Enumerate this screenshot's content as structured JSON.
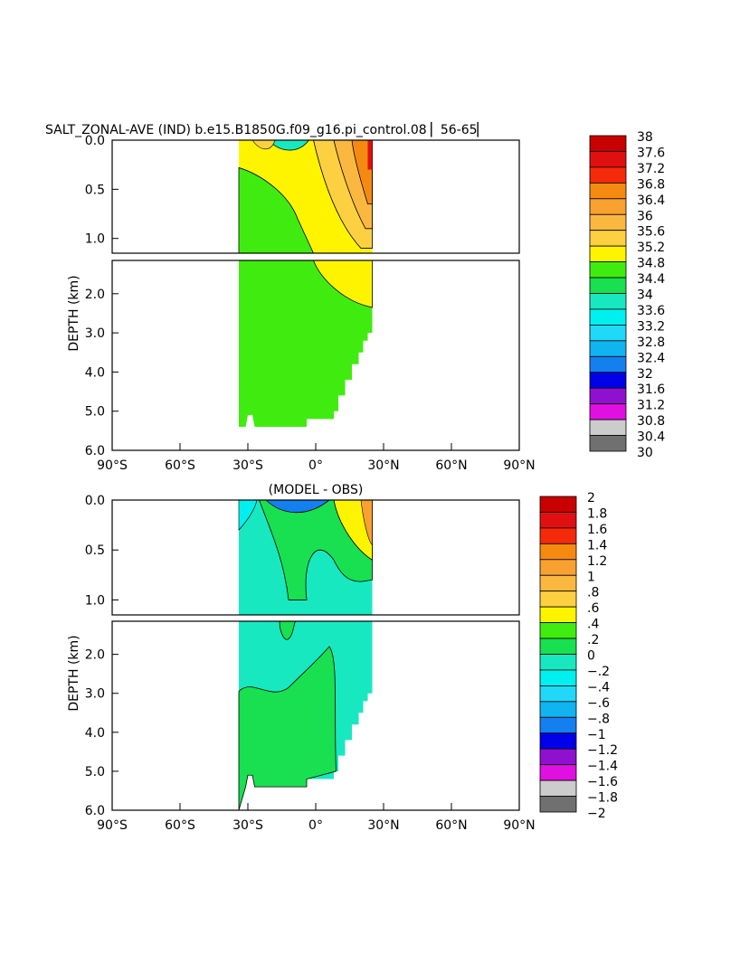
{
  "chart_data": [
    {
      "type": "heatmap",
      "title": "SALT_ZONAL-AVE (IND) b.e15.B1850G.f09_g16.pi_control.08 ▏56-65▏",
      "ylabel": "DEPTH (km)",
      "xlabel": "",
      "x_ticks": [
        "90°S",
        "60°S",
        "30°S",
        "0°",
        "30°N",
        "60°N",
        "90°N"
      ],
      "y_ticks_upper": [
        "0.0",
        "0.5",
        "1.0"
      ],
      "y_ticks_lower": [
        "2.0",
        "3.0",
        "4.0",
        "5.0",
        "6.0"
      ],
      "xlim": [
        -90,
        90
      ],
      "ylim": [
        6.0,
        0.0
      ],
      "axis_break_km": 1.15,
      "colorbar": {
        "levels": [
          "38",
          "37.6",
          "37.2",
          "36.8",
          "36.4",
          "36",
          "35.6",
          "35.2",
          "34.8",
          "34.4",
          "34",
          "33.6",
          "33.2",
          "32.8",
          "32.4",
          "32",
          "31.6",
          "31.2",
          "30.8",
          "30.4",
          "30"
        ],
        "colors": [
          "#c80000",
          "#e01010",
          "#f52a0a",
          "#f58a10",
          "#f8a030",
          "#fab840",
          "#fcd040",
          "#fff400",
          "#40ec10",
          "#18e050",
          "#18e8c0",
          "#00f0f0",
          "#20d8f8",
          "#10b4f0",
          "#1480f0",
          "#0000e8",
          "#9010d0",
          "#e010e0",
          "#cccccc",
          "#707070"
        ]
      },
      "grid": false
    },
    {
      "type": "heatmap",
      "title": "(MODEL - OBS)",
      "ylabel": "DEPTH (km)",
      "xlabel": "",
      "x_ticks": [
        "90°S",
        "60°S",
        "30°S",
        "0°",
        "30°N",
        "60°N",
        "90°N"
      ],
      "y_ticks_upper": [
        "0.0",
        "0.5",
        "1.0"
      ],
      "y_ticks_lower": [
        "2.0",
        "3.0",
        "4.0",
        "5.0",
        "6.0"
      ],
      "xlim": [
        -90,
        90
      ],
      "ylim": [
        6.0,
        0.0
      ],
      "axis_break_km": 1.15,
      "colorbar": {
        "levels": [
          "2",
          "1.8",
          "1.6",
          "1.4",
          "1.2",
          "1",
          ".8",
          ".6",
          ".4",
          ".2",
          "0",
          "−.2",
          "−.4",
          "−.6",
          "−.8",
          "−1",
          "−1.2",
          "−1.4",
          "−1.6",
          "−1.8",
          "−2"
        ],
        "colors": [
          "#c80000",
          "#e01010",
          "#f52a0a",
          "#f58a10",
          "#f8a030",
          "#fab840",
          "#fcd040",
          "#fff400",
          "#40ec10",
          "#18e050",
          "#18e8c0",
          "#00f0f0",
          "#20d8f8",
          "#10b4f0",
          "#1480f0",
          "#0000e8",
          "#9010d0",
          "#e010e0",
          "#cccccc",
          "#707070"
        ]
      },
      "grid": false
    }
  ]
}
